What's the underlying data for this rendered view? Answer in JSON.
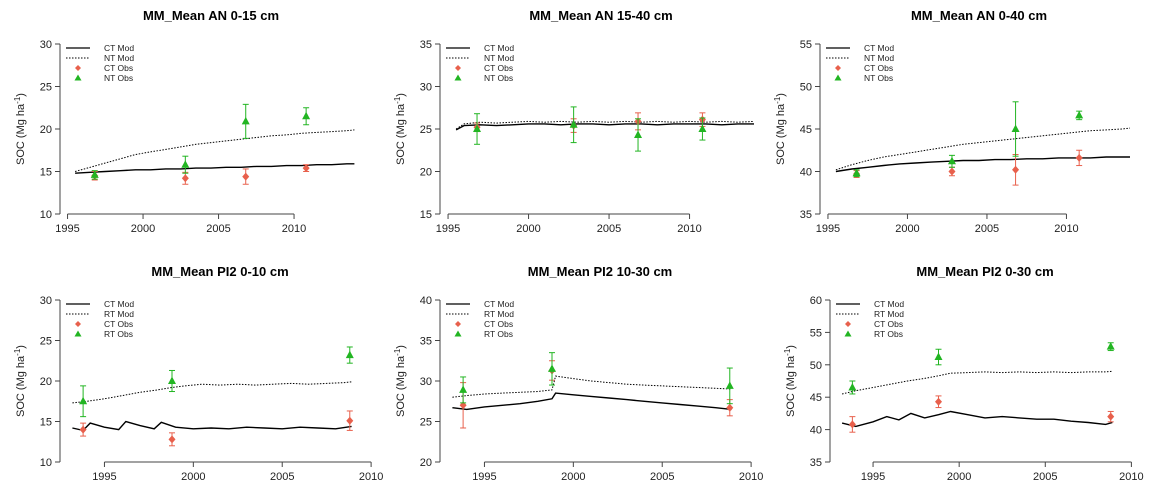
{
  "chart_data": [
    {
      "type": "line",
      "title": "MM_Mean AN 0-15 cm",
      "ylabel": "SOC (Mg ha-1)",
      "xlim": [
        1994.5,
        2014.5
      ],
      "ylim": [
        10,
        30
      ],
      "xticks": [
        1995,
        2000,
        2005,
        2010
      ],
      "yticks": [
        10,
        15,
        20,
        25,
        30
      ],
      "legend": [
        "CT Mod",
        "NT Mod",
        "CT Obs",
        "NT Obs"
      ],
      "mod_series": [
        {
          "name": "CT Mod",
          "style": "solid",
          "color": "#000000",
          "x": [
            1995.5,
            1996.5,
            1997.5,
            1998.5,
            1999.5,
            2000.5,
            2001.5,
            2002.5,
            2003.5,
            2004.5,
            2005.5,
            2006.5,
            2007.5,
            2008.5,
            2009.5,
            2010.5,
            2011.5,
            2012.5,
            2013.5,
            2014.0
          ],
          "y": [
            14.8,
            14.9,
            15.0,
            15.1,
            15.2,
            15.2,
            15.3,
            15.3,
            15.4,
            15.4,
            15.5,
            15.5,
            15.6,
            15.6,
            15.7,
            15.7,
            15.8,
            15.8,
            15.9,
            15.9
          ]
        },
        {
          "name": "NT Mod",
          "style": "dotted",
          "color": "#000000",
          "x": [
            1995.5,
            1996.5,
            1997.5,
            1998.5,
            1999.5,
            2000.5,
            2001.5,
            2002.5,
            2003.5,
            2004.5,
            2005.5,
            2006.5,
            2007.5,
            2008.5,
            2009.5,
            2010.5,
            2011.5,
            2012.5,
            2013.5,
            2014.0
          ],
          "y": [
            15.0,
            15.5,
            16.0,
            16.5,
            17.0,
            17.3,
            17.6,
            17.9,
            18.2,
            18.4,
            18.6,
            18.8,
            19.0,
            19.2,
            19.3,
            19.5,
            19.6,
            19.7,
            19.8,
            19.9
          ]
        }
      ],
      "obs_series": [
        {
          "name": "CT Obs",
          "marker": "diamond",
          "color": "#e8604c",
          "points": [
            [
              1996.8,
              14.5,
              0.5
            ],
            [
              2002.8,
              14.2,
              0.7
            ],
            [
              2006.8,
              14.4,
              0.9
            ],
            [
              2010.8,
              15.4,
              0.4
            ]
          ]
        },
        {
          "name": "NT Obs",
          "marker": "triangle",
          "color": "#22b522",
          "points": [
            [
              1996.8,
              14.6,
              0.5
            ],
            [
              2002.8,
              15.8,
              1.0
            ],
            [
              2006.8,
              20.9,
              2.0
            ],
            [
              2010.8,
              21.5,
              1.0
            ]
          ]
        }
      ]
    },
    {
      "type": "line",
      "title": "MM_Mean AN 15-40 cm",
      "ylabel": "SOC (Mg ha-1)",
      "xlim": [
        1994.5,
        2014.5
      ],
      "ylim": [
        15,
        35
      ],
      "xticks": [
        1995,
        2000,
        2005,
        2010
      ],
      "yticks": [
        15,
        20,
        25,
        30,
        35
      ],
      "legend": [
        "CT Mod",
        "NT Mod",
        "CT Obs",
        "NT Obs"
      ],
      "mod_series": [
        {
          "name": "CT Mod",
          "style": "solid",
          "color": "#000000",
          "x": [
            1995.5,
            1996.0,
            1997.0,
            1998.0,
            1999.0,
            2000.0,
            2001.0,
            2002.0,
            2003.0,
            2004.0,
            2005.0,
            2006.0,
            2007.0,
            2008.0,
            2009.0,
            2010.0,
            2011.0,
            2012.0,
            2013.0,
            2014.0
          ],
          "y": [
            24.9,
            25.4,
            25.5,
            25.4,
            25.5,
            25.6,
            25.6,
            25.5,
            25.6,
            25.6,
            25.5,
            25.6,
            25.6,
            25.5,
            25.6,
            25.6,
            25.6,
            25.5,
            25.6,
            25.6
          ]
        },
        {
          "name": "NT Mod",
          "style": "dotted",
          "color": "#000000",
          "x": [
            1995.5,
            1996.0,
            1997.0,
            1998.0,
            1999.0,
            2000.0,
            2001.0,
            2002.0,
            2003.0,
            2004.0,
            2005.0,
            2006.0,
            2007.0,
            2008.0,
            2009.0,
            2010.0,
            2011.0,
            2012.0,
            2013.0,
            2014.0
          ],
          "y": [
            25.0,
            25.6,
            25.8,
            25.7,
            25.8,
            25.9,
            25.8,
            25.9,
            25.8,
            25.9,
            25.8,
            25.9,
            25.8,
            25.9,
            25.8,
            25.9,
            25.8,
            25.9,
            25.8,
            25.9
          ]
        }
      ],
      "obs_series": [
        {
          "name": "CT Obs",
          "marker": "diamond",
          "color": "#e8604c",
          "points": [
            [
              1996.8,
              25.2,
              0.5
            ],
            [
              2002.8,
              25.4,
              0.8
            ],
            [
              2006.8,
              25.9,
              1.0
            ],
            [
              2010.8,
              26.1,
              0.8
            ]
          ]
        },
        {
          "name": "NT Obs",
          "marker": "triangle",
          "color": "#22b522",
          "points": [
            [
              1996.8,
              25.0,
              1.8
            ],
            [
              2002.8,
              25.5,
              2.1
            ],
            [
              2006.8,
              24.3,
              1.9
            ],
            [
              2010.8,
              25.0,
              1.3
            ]
          ]
        }
      ]
    },
    {
      "type": "line",
      "title": "MM_Mean AN 0-40 cm",
      "ylabel": "SOC (Mg ha-1)",
      "xlim": [
        1994.5,
        2014.5
      ],
      "ylim": [
        35,
        55
      ],
      "xticks": [
        1995,
        2000,
        2005,
        2010
      ],
      "yticks": [
        35,
        40,
        45,
        50,
        55
      ],
      "legend": [
        "CT Mod",
        "NT Mod",
        "CT Obs",
        "NT Obs"
      ],
      "mod_series": [
        {
          "name": "CT Mod",
          "style": "solid",
          "color": "#000000",
          "x": [
            1995.5,
            1996.5,
            1997.5,
            1998.5,
            1999.5,
            2000.5,
            2001.5,
            2002.5,
            2003.5,
            2004.5,
            2005.5,
            2006.5,
            2007.5,
            2008.5,
            2009.5,
            2010.5,
            2011.5,
            2012.5,
            2013.5,
            2014.0
          ],
          "y": [
            40.0,
            40.3,
            40.5,
            40.7,
            40.9,
            41.0,
            41.1,
            41.2,
            41.3,
            41.3,
            41.4,
            41.4,
            41.5,
            41.5,
            41.6,
            41.6,
            41.6,
            41.7,
            41.7,
            41.7
          ]
        },
        {
          "name": "NT Mod",
          "style": "dotted",
          "color": "#000000",
          "x": [
            1995.5,
            1996.5,
            1997.5,
            1998.5,
            1999.5,
            2000.5,
            2001.5,
            2002.5,
            2003.5,
            2004.5,
            2005.5,
            2006.5,
            2007.5,
            2008.5,
            2009.5,
            2010.5,
            2011.5,
            2012.5,
            2013.5,
            2014.0
          ],
          "y": [
            40.2,
            40.8,
            41.3,
            41.7,
            42.0,
            42.3,
            42.6,
            42.9,
            43.2,
            43.4,
            43.6,
            43.8,
            44.0,
            44.2,
            44.4,
            44.6,
            44.8,
            44.9,
            45.0,
            45.1
          ]
        }
      ],
      "obs_series": [
        {
          "name": "CT Obs",
          "marker": "diamond",
          "color": "#e8604c",
          "points": [
            [
              1996.8,
              39.7,
              0.4
            ],
            [
              2002.8,
              40.0,
              0.5
            ],
            [
              2006.8,
              40.2,
              1.8
            ],
            [
              2010.8,
              41.6,
              0.9
            ]
          ]
        },
        {
          "name": "NT Obs",
          "marker": "triangle",
          "color": "#22b522",
          "points": [
            [
              1996.8,
              39.8,
              0.4
            ],
            [
              2002.8,
              41.2,
              0.7
            ],
            [
              2006.8,
              45.0,
              3.2
            ],
            [
              2010.8,
              46.6,
              0.5
            ]
          ]
        }
      ]
    },
    {
      "type": "line",
      "title": "MM_Mean PI2 0-10 cm",
      "ylabel": "SOC (Mg ha-1)",
      "xlim": [
        1992.5,
        2010.5
      ],
      "ylim": [
        10,
        30
      ],
      "xticks": [
        1995,
        2000,
        2005,
        2010
      ],
      "yticks": [
        10,
        15,
        20,
        25,
        30
      ],
      "legend": [
        "CT Mod",
        "RT Mod",
        "CT Obs",
        "RT Obs"
      ],
      "mod_series": [
        {
          "name": "CT Mod",
          "style": "solid",
          "color": "#000000",
          "x": [
            1993.2,
            1993.8,
            1994.2,
            1995.0,
            1995.8,
            1996.2,
            1997.0,
            1997.8,
            1998.2,
            1999.0,
            2000.0,
            2001.0,
            2002.0,
            2003.0,
            2004.0,
            2005.0,
            2006.0,
            2007.0,
            2008.0,
            2008.9
          ],
          "y": [
            14.2,
            13.9,
            14.8,
            14.3,
            14.0,
            15.0,
            14.5,
            14.1,
            14.9,
            14.3,
            14.1,
            14.2,
            14.1,
            14.3,
            14.2,
            14.1,
            14.3,
            14.2,
            14.1,
            14.4
          ]
        },
        {
          "name": "RT Mod",
          "style": "dotted",
          "color": "#000000",
          "x": [
            1993.2,
            1994.0,
            1995.0,
            1996.0,
            1997.0,
            1998.0,
            1998.8,
            1999.5,
            2000.5,
            2001.5,
            2002.5,
            2003.5,
            2004.5,
            2005.5,
            2006.5,
            2007.5,
            2008.5,
            2008.9
          ],
          "y": [
            17.3,
            17.5,
            17.8,
            18.2,
            18.6,
            18.9,
            19.2,
            19.4,
            19.6,
            19.5,
            19.6,
            19.5,
            19.6,
            19.7,
            19.6,
            19.7,
            19.8,
            19.9
          ]
        }
      ],
      "obs_series": [
        {
          "name": "CT Obs",
          "marker": "diamond",
          "color": "#e8604c",
          "points": [
            [
              1993.8,
              14.0,
              0.8
            ],
            [
              1998.8,
              12.8,
              0.8
            ],
            [
              2008.8,
              15.1,
              1.2
            ]
          ]
        },
        {
          "name": "RT Obs",
          "marker": "triangle",
          "color": "#22b522",
          "points": [
            [
              1993.8,
              17.5,
              1.9
            ],
            [
              1998.8,
              20.0,
              1.3
            ],
            [
              2008.8,
              23.2,
              1.0
            ]
          ]
        }
      ]
    },
    {
      "type": "line",
      "title": "MM_Mean PI2 10-30 cm",
      "ylabel": "SOC (Mg ha-1)",
      "xlim": [
        1992.5,
        2010.5
      ],
      "ylim": [
        20,
        40
      ],
      "xticks": [
        1995,
        2000,
        2005,
        2010
      ],
      "yticks": [
        20,
        25,
        30,
        35,
        40
      ],
      "legend": [
        "CT Mod",
        "RT Mod",
        "CT Obs",
        "RT Obs"
      ],
      "mod_series": [
        {
          "name": "CT Mod",
          "style": "solid",
          "color": "#000000",
          "x": [
            1993.2,
            1994.0,
            1995.0,
            1996.0,
            1997.0,
            1998.0,
            1998.8,
            1999.0,
            2000.0,
            2001.0,
            2002.0,
            2003.0,
            2004.0,
            2005.0,
            2006.0,
            2007.0,
            2008.0,
            2008.9
          ],
          "y": [
            26.7,
            26.5,
            26.8,
            27.0,
            27.2,
            27.5,
            27.8,
            28.5,
            28.3,
            28.1,
            27.9,
            27.7,
            27.5,
            27.3,
            27.1,
            26.9,
            26.7,
            26.5
          ]
        },
        {
          "name": "RT Mod",
          "style": "dotted",
          "color": "#000000",
          "x": [
            1993.2,
            1994.0,
            1995.0,
            1996.0,
            1997.0,
            1998.0,
            1998.8,
            1999.0,
            2000.0,
            2001.0,
            2002.0,
            2003.0,
            2004.0,
            2005.0,
            2006.0,
            2007.0,
            2008.0,
            2008.9
          ],
          "y": [
            28.0,
            28.2,
            28.4,
            28.5,
            28.6,
            28.7,
            28.9,
            30.6,
            30.3,
            30.0,
            29.8,
            29.6,
            29.5,
            29.4,
            29.3,
            29.2,
            29.1,
            29.0
          ]
        }
      ],
      "obs_series": [
        {
          "name": "CT Obs",
          "marker": "diamond",
          "color": "#e8604c",
          "points": [
            [
              1993.8,
              27.0,
              2.8
            ],
            [
              1998.8,
              31.3,
              1.2
            ],
            [
              2008.8,
              26.7,
              1.0
            ]
          ]
        },
        {
          "name": "RT Obs",
          "marker": "triangle",
          "color": "#22b522",
          "points": [
            [
              1993.8,
              28.9,
              1.6
            ],
            [
              1998.8,
              31.5,
              2.0
            ],
            [
              2008.8,
              29.4,
              2.2
            ]
          ]
        }
      ]
    },
    {
      "type": "line",
      "title": "MM_Mean PI2 0-30 cm",
      "ylabel": "SOC (Mg ha-1)",
      "xlim": [
        1992.5,
        2010.5
      ],
      "ylim": [
        35,
        60
      ],
      "xticks": [
        1995,
        2000,
        2005,
        2010
      ],
      "yticks": [
        35,
        40,
        45,
        50,
        55,
        60
      ],
      "legend": [
        "CT Mod",
        "RT Mod",
        "CT Obs",
        "RT Obs"
      ],
      "mod_series": [
        {
          "name": "CT Mod",
          "style": "solid",
          "color": "#000000",
          "x": [
            1993.2,
            1994.0,
            1995.0,
            1995.8,
            1996.5,
            1997.2,
            1998.0,
            1998.8,
            1999.5,
            2000.5,
            2001.5,
            2002.5,
            2003.5,
            2004.5,
            2005.5,
            2006.5,
            2007.5,
            2008.5,
            2008.9
          ],
          "y": [
            41.0,
            40.5,
            41.2,
            42.0,
            41.5,
            42.5,
            41.8,
            42.3,
            42.8,
            42.3,
            41.8,
            42.0,
            41.8,
            41.6,
            41.6,
            41.3,
            41.1,
            40.8,
            41.1
          ]
        },
        {
          "name": "RT Mod",
          "style": "dotted",
          "color": "#000000",
          "x": [
            1993.2,
            1994.0,
            1995.0,
            1996.0,
            1997.0,
            1998.0,
            1998.8,
            1999.5,
            2000.5,
            2001.5,
            2002.5,
            2003.5,
            2004.5,
            2005.5,
            2006.5,
            2007.5,
            2008.5,
            2008.9
          ],
          "y": [
            45.5,
            46.0,
            46.5,
            47.0,
            47.5,
            47.9,
            48.3,
            48.7,
            48.8,
            48.9,
            48.8,
            48.9,
            48.8,
            48.9,
            48.8,
            48.9,
            48.9,
            49.0
          ]
        }
      ],
      "obs_series": [
        {
          "name": "CT Obs",
          "marker": "diamond",
          "color": "#e8604c",
          "points": [
            [
              1993.8,
              40.8,
              1.2
            ],
            [
              1998.8,
              44.3,
              0.9
            ],
            [
              2008.8,
              42.0,
              0.8
            ]
          ]
        },
        {
          "name": "RT Obs",
          "marker": "triangle",
          "color": "#22b522",
          "points": [
            [
              1993.8,
              46.5,
              1.0
            ],
            [
              1998.8,
              51.2,
              1.2
            ],
            [
              2008.8,
              52.8,
              0.6
            ]
          ]
        }
      ]
    }
  ]
}
